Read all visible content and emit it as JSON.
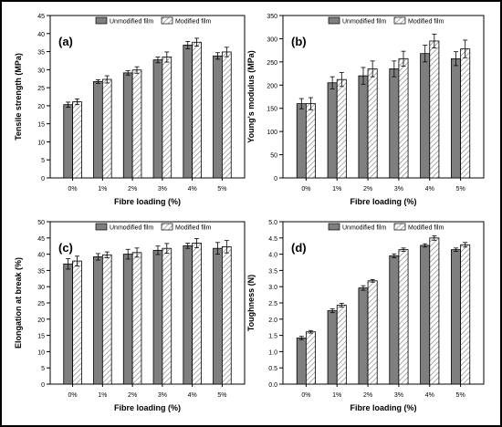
{
  "legend": {
    "unmodified": "Unmodified film",
    "modified": "Modified film"
  },
  "chart_data": [
    {
      "type": "bar",
      "panel_label": "(a)",
      "categories": [
        "0%",
        "1%",
        "2%",
        "3%",
        "4%",
        "5%"
      ],
      "xlabel": "Fibre loading (%)",
      "ylabel": "Tensile strength (MPa)",
      "ylim": [
        0,
        45
      ],
      "yticks": [
        "0",
        "5",
        "10",
        "15",
        "20",
        "25",
        "30",
        "35",
        "40",
        "45"
      ],
      "series": [
        {
          "name": "Unmodified film",
          "values": [
            20.3,
            26.7,
            29.1,
            32.7,
            36.8,
            33.8
          ],
          "errors": [
            0.7,
            0.5,
            0.6,
            0.8,
            1.0,
            0.9
          ]
        },
        {
          "name": "Modified film",
          "values": [
            21.1,
            27.3,
            29.9,
            33.5,
            37.6,
            34.9
          ],
          "errors": [
            0.8,
            1.0,
            0.9,
            1.4,
            1.1,
            1.3
          ]
        }
      ],
      "legend_position": "top"
    },
    {
      "type": "bar",
      "panel_label": "(b)",
      "categories": [
        "0%",
        "1%",
        "2%",
        "3%",
        "4%",
        "5%"
      ],
      "xlabel": "Fibre loading (%)",
      "ylabel": "Young's modulus (MPa)",
      "ylim": [
        0,
        350
      ],
      "yticks": [
        "0",
        "50",
        "100",
        "150",
        "200",
        "250",
        "300",
        "350"
      ],
      "series": [
        {
          "name": "Unmodified film",
          "values": [
            160,
            205,
            220,
            235,
            268,
            257
          ],
          "errors": [
            11,
            13,
            18,
            17,
            18,
            15
          ]
        },
        {
          "name": "Modified film",
          "values": [
            160,
            212,
            235,
            257,
            295,
            278
          ],
          "errors": [
            13,
            15,
            17,
            16,
            15,
            19
          ]
        }
      ],
      "legend_position": "top"
    },
    {
      "type": "bar",
      "panel_label": "(c)",
      "categories": [
        "0%",
        "1%",
        "2%",
        "3%",
        "4%",
        "5%"
      ],
      "xlabel": "Fibre loading (%)",
      "ylabel": "Elongation at break (%)",
      "ylim": [
        0,
        50
      ],
      "yticks": [
        "0",
        "5",
        "10",
        "15",
        "20",
        "25",
        "30",
        "35",
        "40",
        "45",
        "50"
      ],
      "series": [
        {
          "name": "Unmodified film",
          "values": [
            37.0,
            39.2,
            40.0,
            41.2,
            42.6,
            41.8
          ],
          "errors": [
            1.6,
            1.0,
            1.5,
            1.3,
            0.8,
            1.8
          ]
        },
        {
          "name": "Modified film",
          "values": [
            37.9,
            39.8,
            40.5,
            41.8,
            43.4,
            42.3
          ],
          "errors": [
            1.5,
            0.9,
            1.4,
            1.5,
            1.4,
            1.9
          ]
        }
      ],
      "legend_position": "top"
    },
    {
      "type": "bar",
      "panel_label": "(d)",
      "categories": [
        "0%",
        "1%",
        "2%",
        "3%",
        "4%",
        "5%"
      ],
      "xlabel": "Fibre loading (%)",
      "ylabel": "Toughness (N)",
      "ylim": [
        0,
        5.0
      ],
      "yticks": [
        "0.0",
        "0.5",
        "1.0",
        "1.5",
        "2.0",
        "2.5",
        "3.0",
        "3.5",
        "4.0",
        "4.5",
        "5.0"
      ],
      "series": [
        {
          "name": "Unmodified film",
          "values": [
            1.42,
            2.26,
            2.96,
            3.95,
            4.27,
            4.14
          ],
          "errors": [
            0.05,
            0.06,
            0.07,
            0.06,
            0.05,
            0.05
          ]
        },
        {
          "name": "Modified film",
          "values": [
            1.61,
            2.43,
            3.18,
            4.14,
            4.5,
            4.29
          ],
          "errors": [
            0.04,
            0.06,
            0.04,
            0.05,
            0.07,
            0.07
          ]
        }
      ],
      "legend_position": "top"
    }
  ]
}
